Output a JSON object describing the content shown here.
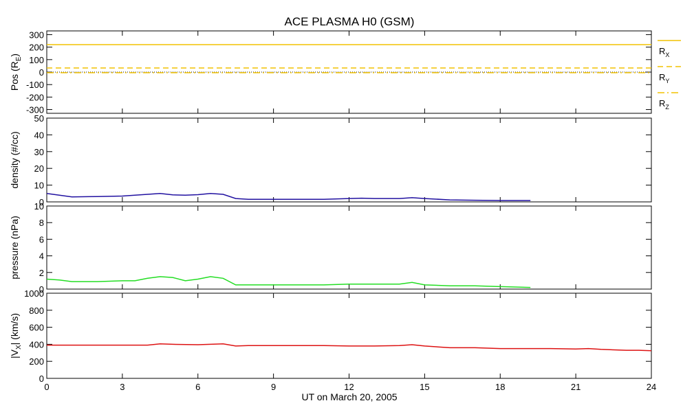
{
  "chart_data": {
    "type": "line",
    "title": "ACE PLASMA H0 (GSM)",
    "xlabel": "UT on March 20, 2005",
    "x_unit": "hours",
    "xlim": [
      0,
      24
    ],
    "x_ticks": [
      0,
      3,
      6,
      9,
      12,
      15,
      18,
      21,
      24
    ],
    "x_tick_labels": [
      "0",
      "3",
      "6",
      "9",
      "12",
      "15",
      "18",
      "21",
      "24"
    ],
    "panels": [
      {
        "id": "pos",
        "ylabel_main": "Pos (R",
        "ylabel_sub": "E",
        "ylabel_end": ")",
        "ylim": [
          -330,
          330
        ],
        "y_ticks": [
          -300,
          -200,
          -100,
          0,
          100,
          200,
          300
        ],
        "y_tick_labels": [
          "-300",
          "-200",
          "-100",
          "0",
          "100",
          "200",
          "300"
        ],
        "zero_line": true,
        "series": [
          {
            "name_main": "R",
            "name_sub": "X",
            "color": "#f2c200",
            "dash": "solid",
            "x": [
              0,
              6,
              12,
              18,
              24
            ],
            "y": [
              220,
              220,
              220,
              220,
              220
            ]
          },
          {
            "name_main": "R",
            "name_sub": "Y",
            "color": "#f2c200",
            "dash": "dashed",
            "x": [
              0,
              6,
              12,
              18,
              24
            ],
            "y": [
              33,
              33,
              33,
              33,
              33
            ]
          },
          {
            "name_main": "R",
            "name_sub": "Z",
            "color": "#f2c200",
            "dash": "dashdot",
            "x": [
              0,
              6,
              12,
              18,
              24
            ],
            "y": [
              -5,
              -5,
              -5,
              -5,
              -5
            ]
          }
        ]
      },
      {
        "id": "density",
        "ylabel_main": "density (#/cc)",
        "ylim": [
          0,
          50
        ],
        "y_ticks": [
          0,
          10,
          20,
          30,
          40,
          50
        ],
        "y_tick_labels": [
          "0",
          "10",
          "20",
          "30",
          "40",
          "50"
        ],
        "series": [
          {
            "color": "#2010a0",
            "x": [
              0,
              0.5,
              1,
              2,
              3,
              3.5,
              4,
              4.5,
              5,
              5.5,
              6,
              6.5,
              7,
              7.5,
              8,
              9,
              10,
              11,
              12,
              12.5,
              13,
              14,
              14.5,
              15,
              16,
              17,
              18,
              19.2
            ],
            "y": [
              5,
              4,
              3,
              3.2,
              3.5,
              4,
              4.5,
              5,
              4.2,
              4,
              4.3,
              5,
              4.5,
              2,
              1.5,
              1.5,
              1.5,
              1.5,
              2,
              2.2,
              2,
              2,
              2.5,
              2,
              1.2,
              1,
              0.8,
              0.8
            ]
          }
        ]
      },
      {
        "id": "pressure",
        "ylabel_main": "pressure (nPa)",
        "ylim": [
          0,
          10
        ],
        "y_ticks": [
          0,
          2,
          4,
          6,
          8,
          10
        ],
        "y_tick_labels": [
          "0",
          "2",
          "4",
          "6",
          "8",
          "10"
        ],
        "series": [
          {
            "color": "#22dd22",
            "x": [
              0,
              0.5,
              1,
              2,
              3,
              3.5,
              4,
              4.5,
              5,
              5.5,
              6,
              6.5,
              7,
              7.5,
              8,
              9,
              10,
              11,
              12,
              13,
              14,
              14.5,
              15,
              16,
              17,
              18,
              19.2
            ],
            "y": [
              1.2,
              1.1,
              0.9,
              0.9,
              1.0,
              1.0,
              1.3,
              1.5,
              1.4,
              1.0,
              1.2,
              1.5,
              1.3,
              0.5,
              0.5,
              0.5,
              0.5,
              0.5,
              0.6,
              0.6,
              0.6,
              0.8,
              0.5,
              0.4,
              0.4,
              0.3,
              0.2
            ]
          }
        ]
      },
      {
        "id": "vx",
        "ylabel_main": "|V",
        "ylabel_sub": "X",
        "ylabel_end": "| (km/s)",
        "ylim": [
          0,
          1000
        ],
        "y_ticks": [
          0,
          200,
          400,
          600,
          800,
          1000
        ],
        "y_tick_labels": [
          "0",
          "200",
          "400",
          "600",
          "800",
          "1000"
        ],
        "series": [
          {
            "color": "#dd1111",
            "x": [
              0,
              1,
              2,
              3,
              4,
              4.5,
              5,
              6,
              7,
              7.5,
              8,
              9,
              10,
              11,
              12,
              13,
              14,
              14.5,
              15,
              16,
              17,
              18,
              19,
              20,
              21,
              21.5,
              22,
              23,
              23.5,
              24
            ],
            "y": [
              390,
              390,
              390,
              390,
              390,
              405,
              400,
              395,
              405,
              380,
              385,
              385,
              385,
              385,
              380,
              380,
              385,
              395,
              380,
              360,
              360,
              350,
              350,
              350,
              345,
              350,
              340,
              330,
              330,
              325
            ]
          }
        ]
      }
    ]
  }
}
